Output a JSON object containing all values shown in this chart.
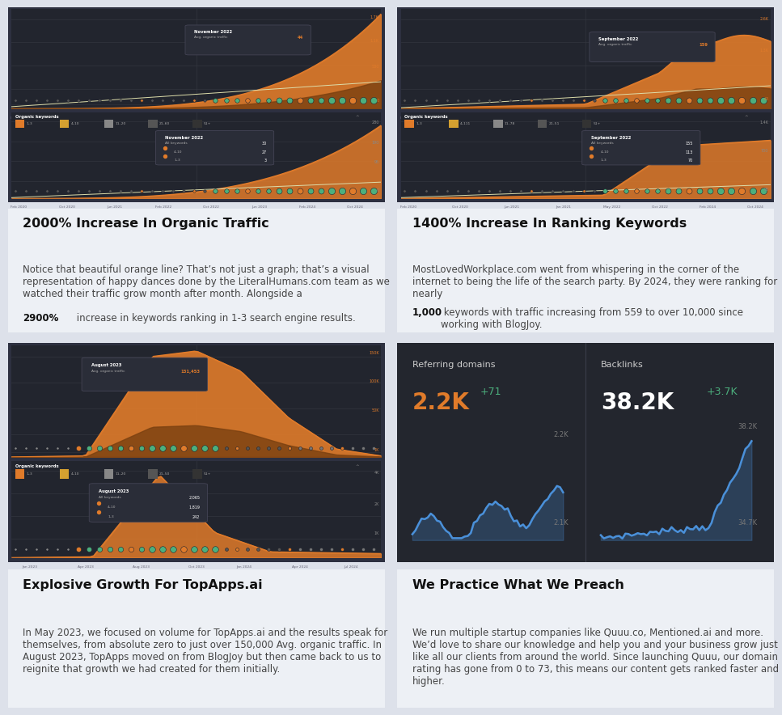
{
  "bg_color": "#dde1ea",
  "panel_bg": "#22252e",
  "panel_bg2": "#1a1d24",
  "card_outer": "#2d3040",
  "orange": "#e07b2a",
  "orange_fill": "#7a4010",
  "green_dot": "#4caf7d",
  "green_text": "#4caf7d",
  "blue_line": "#4a90d9",
  "blue_fill": "#1a3a5c",
  "white": "#ffffff",
  "light_gray": "#aaaaaa",
  "dark_gray": "#555555",
  "text_color": "#111111",
  "muted_text": "#777777",
  "body_color": "#444444",
  "card_bg_light": "#edf0f5",
  "title1": "2000% Increase In Organic Traffic",
  "title2": "1400% Increase In Ranking Keywords",
  "title3": "Explosive Growth For TopApps.ai",
  "title4": "We Practice What We Preach",
  "body1_pre": "Notice that beautiful orange line? That’s not just a graph; that’s a visual\nrepresentation of happy dances done by the LiteralHumans.com team as we\nwatched their traffic grow month after month. Alongside a ",
  "body1_bold": "2900%",
  "body1_post": " increase\nin keywords ranking in 1-3 search engine results.",
  "body2_pre": "MostLovedWorkplace.com went from whispering in the corner of the\ninternet to being the life of the search party. By 2024, they were ranking for\nnearly ",
  "body2_bold": "1,000",
  "body2_post": " keywords with traffic increasing from 559 to over 10,000 since\nworking with BlogJoy.",
  "body3": "In May 2023, we focused on volume for TopApps.ai and the results speak for\nthemselves, from absolute zero to just over 150,000 Avg. organic traffic. In\nAugust 2023, TopApps moved on from BlogJoy but then came back to us to\nreignite that growth we had created for them initially.",
  "body4": "We run multiple startup companies like Quuu.co, Mentioned.ai and more.\nWe’d love to share our knowledge and help you and your business grow just\nlike all our clients from around the world. Since launching Quuu, our domain\nrating has gone from 0 to 73, this means our content gets ranked faster and\nhigher."
}
